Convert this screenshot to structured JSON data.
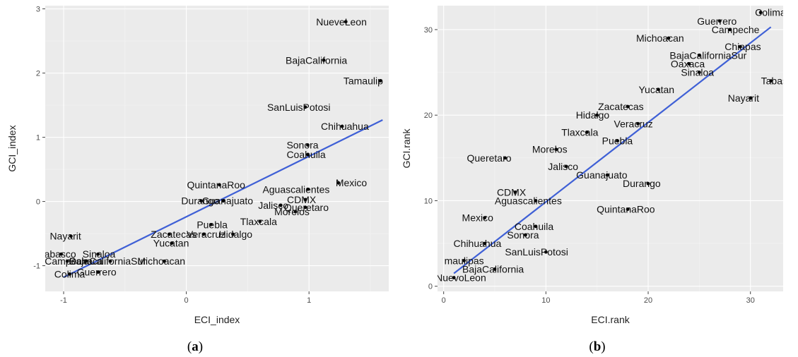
{
  "chart_data": [
    {
      "type": "scatter",
      "caption": "(a)",
      "caption_letter": "a",
      "xlabel": "ECI_index",
      "ylabel": "GCI_index",
      "xlim": [
        -1.15,
        1.65
      ],
      "ylim": [
        -1.4,
        3.05
      ],
      "xticks": [
        -1,
        0,
        1
      ],
      "yticks": [
        -1,
        0,
        1,
        2,
        3
      ],
      "xtick_labels": [
        "-1",
        "0",
        "1"
      ],
      "ytick_labels": [
        "-1",
        "0",
        "1",
        "2",
        "3"
      ],
      "grid": true,
      "fit_line": {
        "type": "linear",
        "x": [
          -1.0,
          1.6
        ],
        "y": [
          -1.18,
          1.27
        ],
        "color": "#3f60d6"
      },
      "points": [
        {
          "label": "NueveLeon",
          "x": 1.3,
          "y": 2.8
        },
        {
          "label": "BajaCalifornia",
          "x": 1.12,
          "y": 2.2
        },
        {
          "label": "Tamaulip",
          "x": 1.58,
          "y": 1.88
        },
        {
          "label": "SanLuisPotosi",
          "x": 0.97,
          "y": 1.47
        },
        {
          "label": "Chihuahua",
          "x": 1.27,
          "y": 1.17
        },
        {
          "label": "Sonora",
          "x": 0.99,
          "y": 0.88
        },
        {
          "label": "Coahuila",
          "x": 0.99,
          "y": 0.73
        },
        {
          "label": "Mexico",
          "x": 1.24,
          "y": 0.29
        },
        {
          "label": "Aguascalientes",
          "x": 0.99,
          "y": 0.19
        },
        {
          "label": "CDMX",
          "x": 0.97,
          "y": 0.03
        },
        {
          "label": "Jalisco",
          "x": 0.77,
          "y": -0.06
        },
        {
          "label": "Queretaro",
          "x": 0.97,
          "y": -0.09
        },
        {
          "label": "Morelos",
          "x": 0.89,
          "y": -0.16
        },
        {
          "label": "Tlaxcala",
          "x": 0.6,
          "y": -0.31
        },
        {
          "label": "QuintanaRoo",
          "x": 0.27,
          "y": 0.26
        },
        {
          "label": "Durango",
          "x": 0.12,
          "y": 0.01
        },
        {
          "label": "Guanajuato",
          "x": 0.3,
          "y": 0.01
        },
        {
          "label": "Puebla",
          "x": 0.2,
          "y": -0.36
        },
        {
          "label": "Hidalgo",
          "x": 0.38,
          "y": -0.51
        },
        {
          "label": "Veracruz",
          "x": 0.14,
          "y": -0.51
        },
        {
          "label": "Zacatecas",
          "x": -0.14,
          "y": -0.51
        },
        {
          "label": "Yucatan",
          "x": -0.12,
          "y": -0.65
        },
        {
          "label": "Nayarit",
          "x": -0.94,
          "y": -0.54
        },
        {
          "label": "Tabasco",
          "x": -1.02,
          "y": -0.82
        },
        {
          "label": "Sinaloa",
          "x": -0.72,
          "y": -0.82
        },
        {
          "label": "Campeche",
          "x": -0.97,
          "y": -0.93
        },
        {
          "label": "Oaxaca",
          "x": -0.82,
          "y": -0.93
        },
        {
          "label": "BajaCaliforniaSur",
          "x": -0.62,
          "y": -0.93
        },
        {
          "label": "Michoacan",
          "x": -0.18,
          "y": -0.93
        },
        {
          "label": "Colima",
          "x": -0.95,
          "y": -1.13
        },
        {
          "label": "Guerrero",
          "x": -0.72,
          "y": -1.1
        }
      ],
      "visible_labels": {
        "Tamaulip": "Tamaulip",
        "Tabasco": "abasco",
        "Sinaloa": "Sinaloa",
        "Campeche": "Campeche",
        "Oaxaca": "Oaxaca",
        "BajaCaliforniaSur": "BajaCaliforniaSur",
        "Colima": "Colima"
      }
    },
    {
      "type": "scatter",
      "caption": "(b)",
      "caption_letter": "b",
      "xlabel": "ECI.rank",
      "ylabel": "GCI.rank",
      "xlim": [
        -0.6,
        33.2
      ],
      "ylim": [
        -0.6,
        32.8
      ],
      "xticks": [
        0,
        10,
        20,
        30
      ],
      "yticks": [
        0,
        10,
        20,
        30
      ],
      "xtick_labels": [
        "0",
        "10",
        "20",
        "30"
      ],
      "ytick_labels": [
        "0",
        "10",
        "20",
        "30"
      ],
      "grid": true,
      "fit_line": {
        "type": "linear",
        "x": [
          1,
          32
        ],
        "y": [
          1.5,
          30.3
        ],
        "color": "#3f60d6"
      },
      "points": [
        {
          "label": "Colima",
          "x": 31,
          "y": 32
        },
        {
          "label": "Guerrero",
          "x": 27,
          "y": 31
        },
        {
          "label": "Campeche",
          "x": 28,
          "y": 30
        },
        {
          "label": "Michoacan",
          "x": 22,
          "y": 29
        },
        {
          "label": "Chiapas",
          "x": 29,
          "y": 28
        },
        {
          "label": "BajaCaliforniaSur",
          "x": 25,
          "y": 27
        },
        {
          "label": "Oaxaca",
          "x": 24,
          "y": 26
        },
        {
          "label": "Sinaloa",
          "x": 25,
          "y": 25
        },
        {
          "label": "Tabasco",
          "x": 32,
          "y": 24
        },
        {
          "label": "Yucatan",
          "x": 21,
          "y": 23
        },
        {
          "label": "Nayarit",
          "x": 30,
          "y": 22
        },
        {
          "label": "Zacatecas",
          "x": 18,
          "y": 21
        },
        {
          "label": "Hidalgo",
          "x": 15,
          "y": 20
        },
        {
          "label": "Veracruz",
          "x": 19,
          "y": 19
        },
        {
          "label": "Tlaxcala",
          "x": 14,
          "y": 18
        },
        {
          "label": "Puebla",
          "x": 17,
          "y": 17
        },
        {
          "label": "Morelos",
          "x": 11,
          "y": 16
        },
        {
          "label": "Queretaro",
          "x": 6,
          "y": 15
        },
        {
          "label": "Jalisco",
          "x": 12,
          "y": 14
        },
        {
          "label": "Guanajuato",
          "x": 16,
          "y": 13
        },
        {
          "label": "Durango",
          "x": 20,
          "y": 12
        },
        {
          "label": "CDMX",
          "x": 7,
          "y": 11
        },
        {
          "label": "Aguascalientes",
          "x": 9,
          "y": 10
        },
        {
          "label": "QuintanaRoo",
          "x": 18,
          "y": 9
        },
        {
          "label": "Mexico",
          "x": 4,
          "y": 8
        },
        {
          "label": "Coahuila",
          "x": 9,
          "y": 7
        },
        {
          "label": "Sonora",
          "x": 8,
          "y": 6
        },
        {
          "label": "Chihuahua",
          "x": 4,
          "y": 5
        },
        {
          "label": "SanLuisPotosi",
          "x": 10,
          "y": 4
        },
        {
          "label": "Tamaulipas",
          "x": 2,
          "y": 3
        },
        {
          "label": "BajaCalifornia",
          "x": 5,
          "y": 2
        },
        {
          "label": "NuevoLeon",
          "x": 1,
          "y": 1
        }
      ],
      "visible_labels": {
        "Tamaulipas": "maulipas",
        "NuevoLeon": "NuevoLeon"
      }
    }
  ]
}
